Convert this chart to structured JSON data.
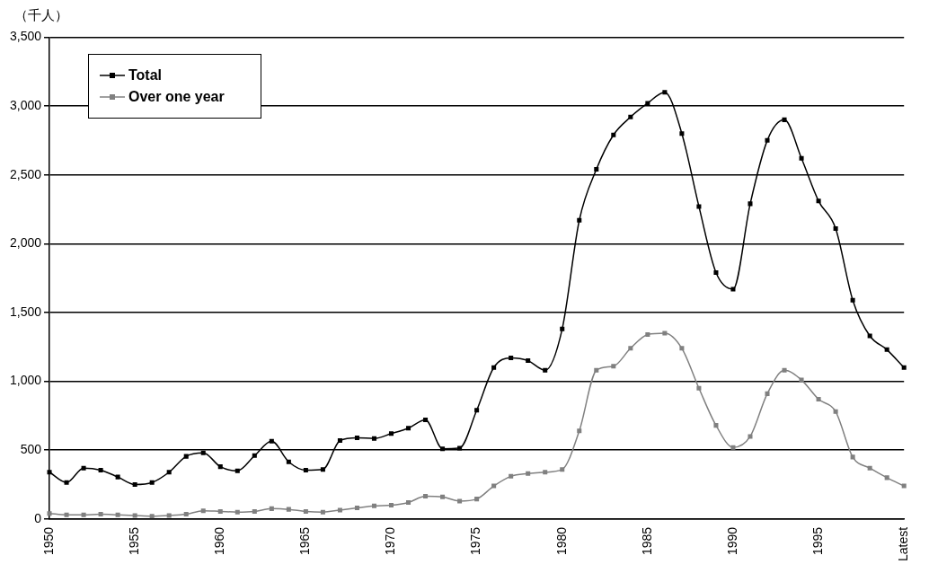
{
  "chart_data": {
    "type": "line",
    "ylabel": "（千人）",
    "categories": [
      "1950",
      null,
      null,
      null,
      null,
      "1955",
      null,
      null,
      null,
      null,
      "1960",
      null,
      null,
      null,
      null,
      "1965",
      null,
      null,
      null,
      null,
      "1970",
      null,
      null,
      null,
      null,
      "1975",
      null,
      null,
      null,
      null,
      "1980",
      null,
      null,
      null,
      null,
      "1985",
      null,
      null,
      null,
      null,
      "1990",
      null,
      null,
      null,
      null,
      "1995",
      null,
      null,
      null,
      null,
      "Latest"
    ],
    "series": [
      {
        "name": "Total",
        "color": "#000000",
        "values": [
          340,
          265,
          370,
          355,
          305,
          250,
          265,
          340,
          455,
          480,
          380,
          350,
          460,
          565,
          415,
          355,
          360,
          570,
          590,
          585,
          620,
          660,
          720,
          510,
          515,
          790,
          1100,
          1170,
          1150,
          1080,
          1380,
          2170,
          2540,
          2790,
          2920,
          3020,
          3100,
          2800,
          2270,
          1790,
          1670,
          2290,
          2750,
          2900,
          2620,
          2310,
          2110,
          1590,
          1330,
          1230,
          1100
        ]
      },
      {
        "name": "Over one year",
        "color": "#808080",
        "values": [
          40,
          30,
          30,
          35,
          30,
          25,
          20,
          25,
          35,
          60,
          55,
          50,
          55,
          75,
          70,
          55,
          50,
          65,
          80,
          95,
          100,
          120,
          165,
          160,
          130,
          145,
          240,
          310,
          330,
          340,
          360,
          640,
          1080,
          1110,
          1240,
          1340,
          1350,
          1240,
          950,
          680,
          520,
          600,
          910,
          1080,
          1010,
          870,
          780,
          450,
          370,
          300,
          240
        ]
      }
    ],
    "ylim": [
      0,
      3500
    ],
    "yticks": [
      0,
      500,
      {
        "value": 1000,
        "label": "1,000"
      },
      {
        "value": 1500,
        "label": "1,500"
      },
      {
        "value": 2000,
        "label": "2,000"
      },
      {
        "value": 2500,
        "label": "2,500"
      },
      {
        "value": 3000,
        "label": "3,000"
      },
      {
        "value": 3500,
        "label": "3,500"
      }
    ],
    "grid": "y",
    "legend": "top left",
    "marker": "square",
    "line_style": "solid"
  }
}
